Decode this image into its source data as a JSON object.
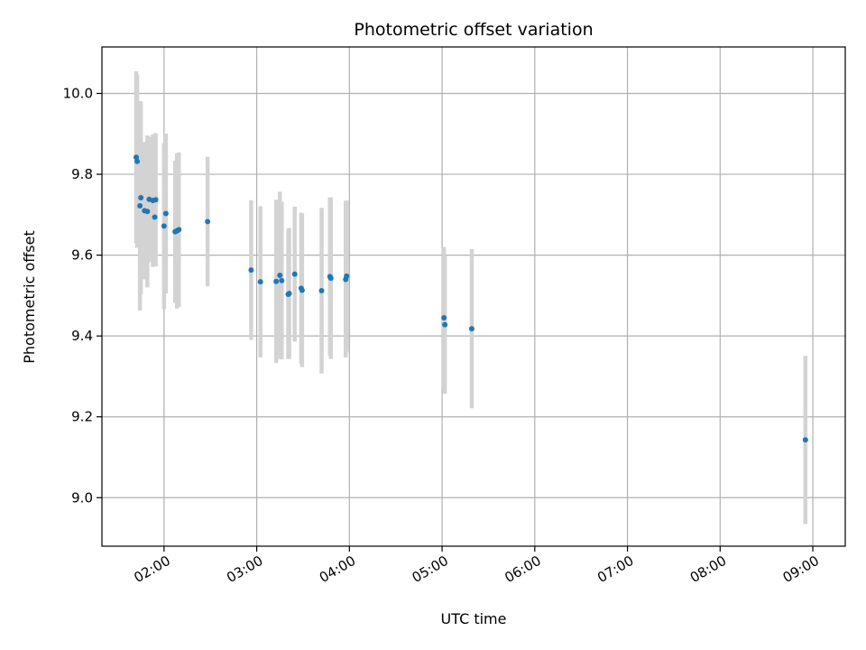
{
  "chart_data": {
    "type": "scatter",
    "title": "Photometric offset variation",
    "xlabel": "UTC time",
    "ylabel": "Photometric offset",
    "x_unit": "UTC hours",
    "xlim": [
      1.33,
      9.35
    ],
    "ylim": [
      8.88,
      10.115
    ],
    "x_ticks": [
      {
        "value": 2,
        "label": "02:00"
      },
      {
        "value": 3,
        "label": "03:00"
      },
      {
        "value": 4,
        "label": "04:00"
      },
      {
        "value": 5,
        "label": "05:00"
      },
      {
        "value": 6,
        "label": "06:00"
      },
      {
        "value": 7,
        "label": "07:00"
      },
      {
        "value": 8,
        "label": "08:00"
      },
      {
        "value": 9,
        "label": "09:00"
      }
    ],
    "y_ticks": [
      {
        "value": 9.0,
        "label": "9.0"
      },
      {
        "value": 9.2,
        "label": "9.2"
      },
      {
        "value": 9.4,
        "label": "9.4"
      },
      {
        "value": 9.6,
        "label": "9.6"
      },
      {
        "value": 9.8,
        "label": "9.8"
      },
      {
        "value": 10.0,
        "label": "10.0"
      }
    ],
    "grid": true,
    "colors": {
      "point": "#1f77b4",
      "errorbar": "#d3d3d3",
      "grid": "#b0b0b0"
    },
    "points": [
      {
        "x": 1.7,
        "y": 9.842,
        "err": 0.213
      },
      {
        "x": 1.71,
        "y": 9.832,
        "err": 0.214
      },
      {
        "x": 1.74,
        "y": 9.722,
        "err": 0.259
      },
      {
        "x": 1.75,
        "y": 9.742,
        "err": 0.238
      },
      {
        "x": 1.79,
        "y": 9.71,
        "err": 0.17
      },
      {
        "x": 1.82,
        "y": 9.708,
        "err": 0.188
      },
      {
        "x": 1.84,
        "y": 9.738,
        "err": 0.155
      },
      {
        "x": 1.88,
        "y": 9.735,
        "err": 0.164
      },
      {
        "x": 1.9,
        "y": 9.694,
        "err": 0.116
      },
      {
        "x": 1.91,
        "y": 9.737,
        "err": 0.165
      },
      {
        "x": 2.0,
        "y": 9.672,
        "err": 0.205
      },
      {
        "x": 2.02,
        "y": 9.703,
        "err": 0.198
      },
      {
        "x": 2.12,
        "y": 9.658,
        "err": 0.176
      },
      {
        "x": 2.14,
        "y": 9.66,
        "err": 0.192
      },
      {
        "x": 2.16,
        "y": 9.663,
        "err": 0.191
      },
      {
        "x": 2.47,
        "y": 9.683,
        "err": 0.16
      },
      {
        "x": 2.94,
        "y": 9.563,
        "err": 0.173
      },
      {
        "x": 3.04,
        "y": 9.534,
        "err": 0.187
      },
      {
        "x": 3.21,
        "y": 9.535,
        "err": 0.202
      },
      {
        "x": 3.25,
        "y": 9.55,
        "err": 0.207
      },
      {
        "x": 3.27,
        "y": 9.537,
        "err": 0.195
      },
      {
        "x": 3.34,
        "y": 9.503,
        "err": 0.16
      },
      {
        "x": 3.35,
        "y": 9.505,
        "err": 0.162
      },
      {
        "x": 3.41,
        "y": 9.553,
        "err": 0.167
      },
      {
        "x": 3.48,
        "y": 9.518,
        "err": 0.187
      },
      {
        "x": 3.49,
        "y": 9.513,
        "err": 0.19
      },
      {
        "x": 3.7,
        "y": 9.512,
        "err": 0.205
      },
      {
        "x": 3.79,
        "y": 9.547,
        "err": 0.196
      },
      {
        "x": 3.8,
        "y": 9.543,
        "err": 0.2
      },
      {
        "x": 3.96,
        "y": 9.54,
        "err": 0.193
      },
      {
        "x": 3.97,
        "y": 9.548,
        "err": 0.187
      },
      {
        "x": 5.02,
        "y": 9.445,
        "err": 0.175
      },
      {
        "x": 5.03,
        "y": 9.428,
        "err": 0.171
      },
      {
        "x": 5.32,
        "y": 9.418,
        "err": 0.197
      },
      {
        "x": 8.92,
        "y": 9.143,
        "err": 0.208
      }
    ]
  }
}
